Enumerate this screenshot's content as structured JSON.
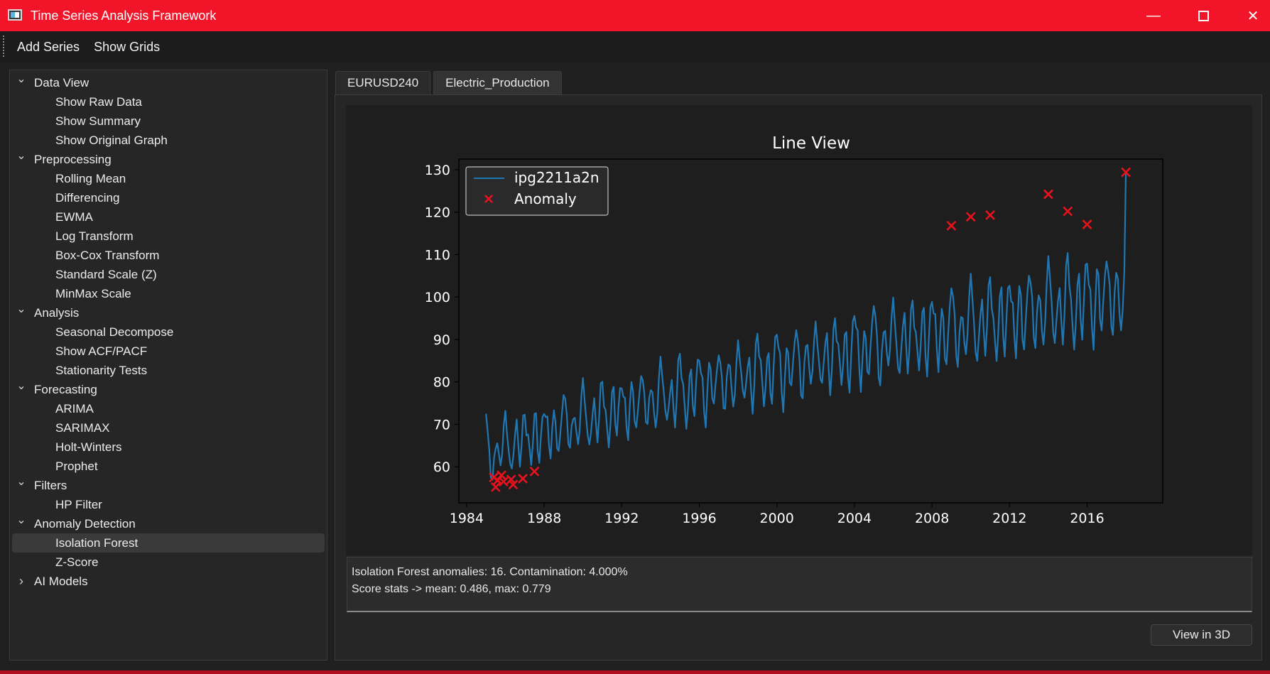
{
  "window": {
    "title": "Time Series Analysis Framework"
  },
  "menu": {
    "items": [
      "Add Series",
      "Show Grids"
    ]
  },
  "sidebar": {
    "groups": [
      {
        "label": "Data View",
        "expanded": true,
        "items": [
          "Show Raw Data",
          "Show Summary",
          "Show Original Graph"
        ]
      },
      {
        "label": "Preprocessing",
        "expanded": true,
        "items": [
          "Rolling Mean",
          "Differencing",
          "EWMA",
          "Log Transform",
          "Box-Cox Transform",
          "Standard Scale (Z)",
          "MinMax Scale"
        ]
      },
      {
        "label": "Analysis",
        "expanded": true,
        "items": [
          "Seasonal Decompose",
          "Show ACF/PACF",
          "Stationarity Tests"
        ]
      },
      {
        "label": "Forecasting",
        "expanded": true,
        "items": [
          "ARIMA",
          "SARIMAX",
          "Holt-Winters",
          "Prophet"
        ]
      },
      {
        "label": "Filters",
        "expanded": true,
        "items": [
          "HP Filter"
        ]
      },
      {
        "label": "Anomaly Detection",
        "expanded": true,
        "items": [
          "Isolation Forest",
          "Z-Score"
        ]
      },
      {
        "label": "AI Models",
        "expanded": false,
        "items": []
      }
    ],
    "selected": "Isolation Forest"
  },
  "tabs": [
    {
      "label": "EURUSD240",
      "active": false
    },
    {
      "label": "Electric_Production",
      "active": true
    }
  ],
  "chart_data": {
    "type": "line",
    "title": "Line View",
    "xlabel": "",
    "ylabel": "",
    "xlim": [
      1983.6,
      2019.9
    ],
    "ylim": [
      51.5,
      132.5
    ],
    "xticks": [
      "1984",
      "1988",
      "1992",
      "1996",
      "2000",
      "2004",
      "2008",
      "2012",
      "2016"
    ],
    "yticks": [
      "60",
      "70",
      "80",
      "90",
      "100",
      "110",
      "120",
      "130"
    ],
    "grid": false,
    "legend": "top-left",
    "series": [
      {
        "name": "ipg2211a2n",
        "kind": "line",
        "color": "#1f77b4",
        "start": "1985-01",
        "frequency": "monthly",
        "mean_start": 62.5,
        "mean_end": 101.5,
        "seasonal_amplitude": 9
      },
      {
        "name": "Anomaly",
        "kind": "scatter",
        "marker": "x",
        "color": "#e8121e",
        "points": [
          {
            "x": 1985.4,
            "y": 57.5
          },
          {
            "x": 1985.5,
            "y": 55.2
          },
          {
            "x": 1985.6,
            "y": 56.8
          },
          {
            "x": 1985.8,
            "y": 58.0
          },
          {
            "x": 1985.9,
            "y": 56.5
          },
          {
            "x": 1986.3,
            "y": 57.0
          },
          {
            "x": 1986.4,
            "y": 55.8
          },
          {
            "x": 1986.9,
            "y": 57.2
          },
          {
            "x": 1987.5,
            "y": 58.9
          },
          {
            "x": 2009.0,
            "y": 116.8
          },
          {
            "x": 2010.0,
            "y": 118.9
          },
          {
            "x": 2011.0,
            "y": 119.3
          },
          {
            "x": 2014.0,
            "y": 124.2
          },
          {
            "x": 2015.0,
            "y": 120.2
          },
          {
            "x": 2016.0,
            "y": 117.1
          },
          {
            "x": 2018.0,
            "y": 129.4
          }
        ]
      }
    ]
  },
  "log": {
    "line1": "Isolation Forest anomalies: 16. Contamination: 4.000%",
    "line2": "Score stats -> mean: 0.486, max: 0.779"
  },
  "buttons": {
    "view3d": "View in 3D"
  }
}
